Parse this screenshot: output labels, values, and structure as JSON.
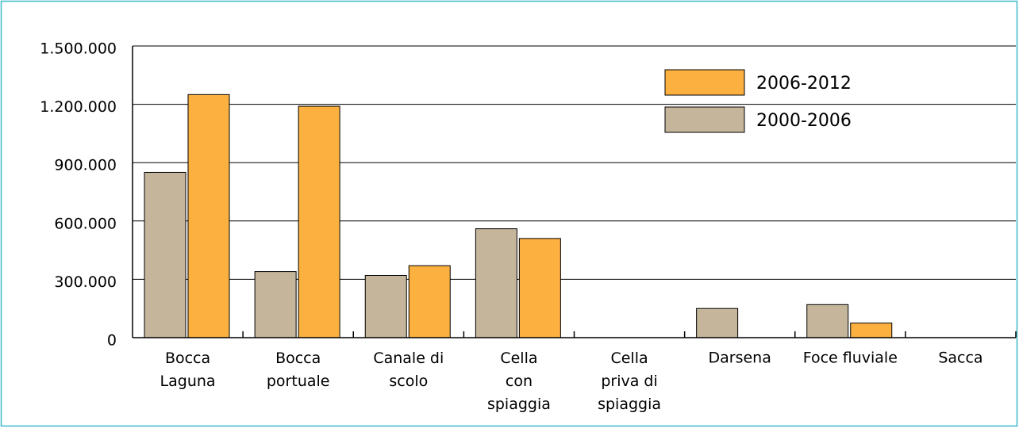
{
  "chart_data": {
    "type": "bar",
    "categories": [
      "Bocca\nLaguna",
      "Bocca\nportuale",
      "Canale di\nscolo",
      "Cella\ncon\nspiaggia",
      "Cella\npriva di\nspiaggia",
      "Darsena",
      "Foce fluviale",
      "Sacca"
    ],
    "series": [
      {
        "name": "2000-2006",
        "color": "#c4b59b",
        "values": [
          850000,
          340000,
          320000,
          560000,
          0,
          150000,
          170000,
          0
        ]
      },
      {
        "name": "2006-2012",
        "color": "#fbb040",
        "values": [
          1250000,
          1190000,
          370000,
          510000,
          0,
          0,
          75000,
          0
        ]
      }
    ],
    "ylim": [
      0,
      1500000
    ],
    "yticks": [
      0,
      {
        "value": 300000,
        "label": "300.000"
      },
      {
        "value": 600000,
        "label": "600.000"
      },
      {
        "value": 900000,
        "label": "900.000"
      },
      {
        "value": 1200000,
        "label": "1.200.000"
      },
      {
        "value": 1500000,
        "label": "1.500.000"
      }
    ],
    "grid": true,
    "legend": "top-right"
  }
}
